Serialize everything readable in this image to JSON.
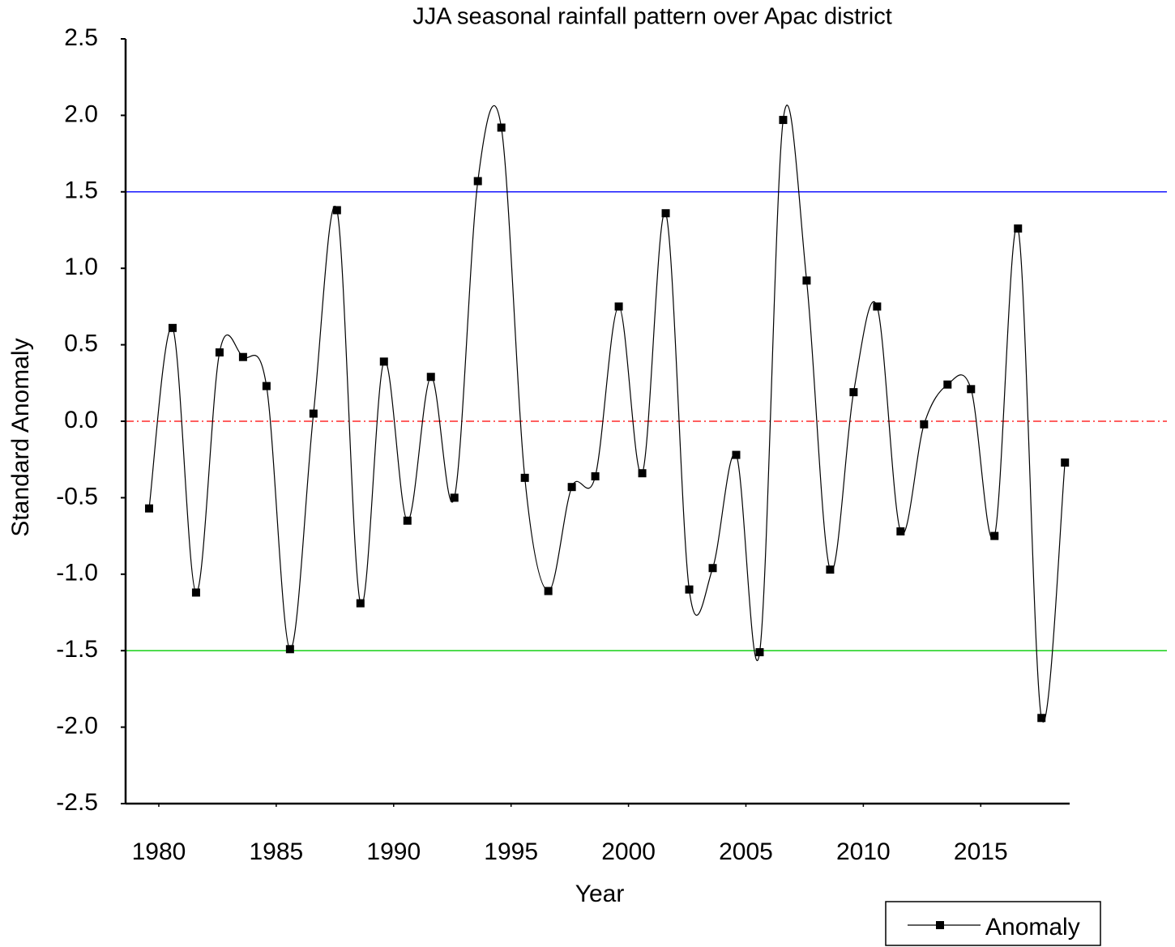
{
  "chart_data": {
    "type": "line",
    "title": "JJA seasonal rainfall pattern over Apac district",
    "x_label": "Year",
    "y_label": "Standard Anomaly",
    "x": [
      1980,
      1981,
      1982,
      1983,
      1984,
      1985,
      1986,
      1987,
      1988,
      1989,
      1990,
      1991,
      1992,
      1993,
      1994,
      1995,
      1996,
      1997,
      1998,
      1999,
      2000,
      2001,
      2002,
      2003,
      2004,
      2005,
      2006,
      2007,
      2008,
      2009,
      2010,
      2011,
      2012,
      2013,
      2014,
      2015,
      2016,
      2017,
      2018,
      2019
    ],
    "series": [
      {
        "name": "Anomaly",
        "color": "#000000",
        "values": [
          -0.57,
          0.61,
          -1.12,
          0.45,
          0.42,
          0.23,
          -1.49,
          0.05,
          1.38,
          -1.19,
          0.39,
          -0.65,
          0.29,
          -0.5,
          1.57,
          1.92,
          -0.37,
          -1.11,
          -0.43,
          -0.36,
          0.75,
          -0.34,
          1.36,
          -1.1,
          -0.96,
          -0.22,
          -1.51,
          1.97,
          0.92,
          -0.97,
          0.19,
          0.75,
          -0.72,
          -0.02,
          0.24,
          0.21,
          -0.75,
          1.26,
          -1.94,
          -0.27
        ]
      }
    ],
    "reference_lines": [
      {
        "value": 1.5,
        "color": "#0000ff",
        "dash": "solid"
      },
      {
        "value": 0,
        "color": "#ff0000",
        "dash": "dashdot"
      },
      {
        "value": -1.5,
        "color": "#00cc00",
        "dash": "solid"
      }
    ],
    "xlim": [
      1979,
      2019.2
    ],
    "xticks": [
      1980,
      1985,
      1990,
      1995,
      2000,
      2005,
      2010,
      2015
    ],
    "ylim": [
      -2.5,
      2.5
    ],
    "yticks": [
      -2.5,
      {
        "value": -2,
        "label": "-2.0"
      },
      -1.5,
      {
        "value": -1,
        "label": "-1.0"
      },
      -0.5,
      {
        "value": 0,
        "label": "0.0"
      },
      0.5,
      {
        "value": 1,
        "label": "1.0"
      },
      1.5,
      {
        "value": 2,
        "label": "2.0"
      },
      2.5
    ],
    "legend": "bottom-right",
    "grid": false
  }
}
